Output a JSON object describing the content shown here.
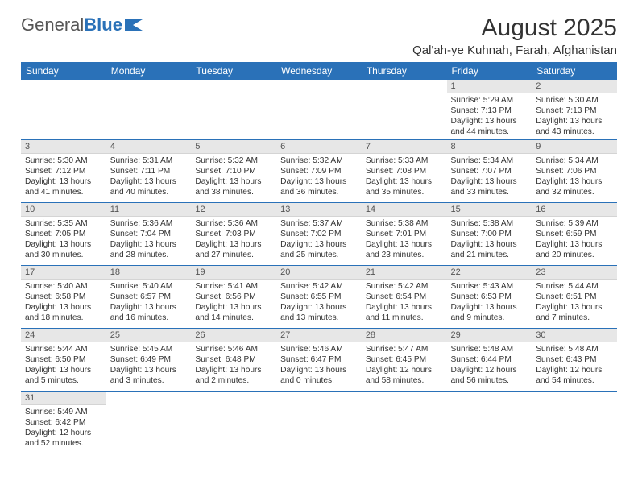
{
  "brand": {
    "part1": "General",
    "part2": "Blue"
  },
  "colors": {
    "header_bg": "#2a71b8",
    "daynum_bg": "#e7e7e7",
    "border": "#2a71b8"
  },
  "title": "August 2025",
  "location": "Qal'ah-ye Kuhnah, Farah, Afghanistan",
  "weekdays": [
    "Sunday",
    "Monday",
    "Tuesday",
    "Wednesday",
    "Thursday",
    "Friday",
    "Saturday"
  ],
  "first_weekday_index": 5,
  "days": [
    {
      "n": 1,
      "sr": "5:29 AM",
      "ss": "7:13 PM",
      "dl": "13 hours and 44 minutes."
    },
    {
      "n": 2,
      "sr": "5:30 AM",
      "ss": "7:13 PM",
      "dl": "13 hours and 43 minutes."
    },
    {
      "n": 3,
      "sr": "5:30 AM",
      "ss": "7:12 PM",
      "dl": "13 hours and 41 minutes."
    },
    {
      "n": 4,
      "sr": "5:31 AM",
      "ss": "7:11 PM",
      "dl": "13 hours and 40 minutes."
    },
    {
      "n": 5,
      "sr": "5:32 AM",
      "ss": "7:10 PM",
      "dl": "13 hours and 38 minutes."
    },
    {
      "n": 6,
      "sr": "5:32 AM",
      "ss": "7:09 PM",
      "dl": "13 hours and 36 minutes."
    },
    {
      "n": 7,
      "sr": "5:33 AM",
      "ss": "7:08 PM",
      "dl": "13 hours and 35 minutes."
    },
    {
      "n": 8,
      "sr": "5:34 AM",
      "ss": "7:07 PM",
      "dl": "13 hours and 33 minutes."
    },
    {
      "n": 9,
      "sr": "5:34 AM",
      "ss": "7:06 PM",
      "dl": "13 hours and 32 minutes."
    },
    {
      "n": 10,
      "sr": "5:35 AM",
      "ss": "7:05 PM",
      "dl": "13 hours and 30 minutes."
    },
    {
      "n": 11,
      "sr": "5:36 AM",
      "ss": "7:04 PM",
      "dl": "13 hours and 28 minutes."
    },
    {
      "n": 12,
      "sr": "5:36 AM",
      "ss": "7:03 PM",
      "dl": "13 hours and 27 minutes."
    },
    {
      "n": 13,
      "sr": "5:37 AM",
      "ss": "7:02 PM",
      "dl": "13 hours and 25 minutes."
    },
    {
      "n": 14,
      "sr": "5:38 AM",
      "ss": "7:01 PM",
      "dl": "13 hours and 23 minutes."
    },
    {
      "n": 15,
      "sr": "5:38 AM",
      "ss": "7:00 PM",
      "dl": "13 hours and 21 minutes."
    },
    {
      "n": 16,
      "sr": "5:39 AM",
      "ss": "6:59 PM",
      "dl": "13 hours and 20 minutes."
    },
    {
      "n": 17,
      "sr": "5:40 AM",
      "ss": "6:58 PM",
      "dl": "13 hours and 18 minutes."
    },
    {
      "n": 18,
      "sr": "5:40 AM",
      "ss": "6:57 PM",
      "dl": "13 hours and 16 minutes."
    },
    {
      "n": 19,
      "sr": "5:41 AM",
      "ss": "6:56 PM",
      "dl": "13 hours and 14 minutes."
    },
    {
      "n": 20,
      "sr": "5:42 AM",
      "ss": "6:55 PM",
      "dl": "13 hours and 13 minutes."
    },
    {
      "n": 21,
      "sr": "5:42 AM",
      "ss": "6:54 PM",
      "dl": "13 hours and 11 minutes."
    },
    {
      "n": 22,
      "sr": "5:43 AM",
      "ss": "6:53 PM",
      "dl": "13 hours and 9 minutes."
    },
    {
      "n": 23,
      "sr": "5:44 AM",
      "ss": "6:51 PM",
      "dl": "13 hours and 7 minutes."
    },
    {
      "n": 24,
      "sr": "5:44 AM",
      "ss": "6:50 PM",
      "dl": "13 hours and 5 minutes."
    },
    {
      "n": 25,
      "sr": "5:45 AM",
      "ss": "6:49 PM",
      "dl": "13 hours and 3 minutes."
    },
    {
      "n": 26,
      "sr": "5:46 AM",
      "ss": "6:48 PM",
      "dl": "13 hours and 2 minutes."
    },
    {
      "n": 27,
      "sr": "5:46 AM",
      "ss": "6:47 PM",
      "dl": "13 hours and 0 minutes."
    },
    {
      "n": 28,
      "sr": "5:47 AM",
      "ss": "6:45 PM",
      "dl": "12 hours and 58 minutes."
    },
    {
      "n": 29,
      "sr": "5:48 AM",
      "ss": "6:44 PM",
      "dl": "12 hours and 56 minutes."
    },
    {
      "n": 30,
      "sr": "5:48 AM",
      "ss": "6:43 PM",
      "dl": "12 hours and 54 minutes."
    },
    {
      "n": 31,
      "sr": "5:49 AM",
      "ss": "6:42 PM",
      "dl": "12 hours and 52 minutes."
    }
  ],
  "labels": {
    "sunrise": "Sunrise:",
    "sunset": "Sunset:",
    "daylight": "Daylight:"
  }
}
